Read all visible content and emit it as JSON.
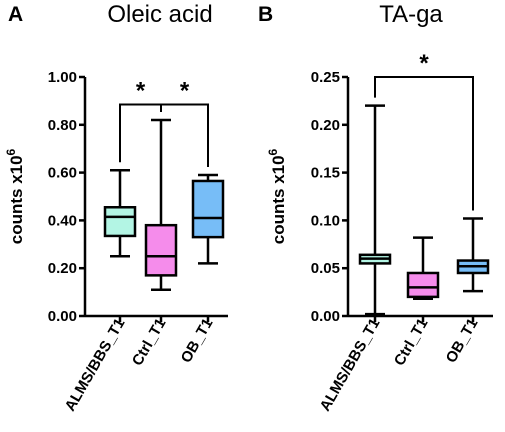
{
  "chart_data": [
    {
      "type": "box",
      "panel": "A",
      "title": "Oleic acid",
      "ylabel": "counts x10",
      "ylabel_sup": "6",
      "ylim": [
        0,
        1.0
      ],
      "yticks": [
        "0.00",
        "0.20",
        "0.40",
        "0.60",
        "0.80",
        "1.00"
      ],
      "categories": [
        "ALMS/BBS_T1",
        "Ctrl_T1",
        "OB_T1"
      ],
      "colors": [
        "#B3F5E4",
        "#F58CEB",
        "#77BDF7"
      ],
      "boxes": [
        {
          "min": 0.25,
          "q1": 0.335,
          "median": 0.415,
          "q3": 0.455,
          "max": 0.61
        },
        {
          "min": 0.11,
          "q1": 0.17,
          "median": 0.25,
          "q3": 0.38,
          "max": 0.82
        },
        {
          "min": 0.22,
          "q1": 0.33,
          "median": 0.41,
          "q3": 0.565,
          "max": 0.59
        }
      ],
      "significance": [
        {
          "from": 0,
          "to": 1,
          "label": "*",
          "y": 0.885
        },
        {
          "from": 1,
          "to": 2,
          "label": "*",
          "y": 0.885
        }
      ]
    },
    {
      "type": "box",
      "panel": "B",
      "title": "TA-ga",
      "ylabel": "counts x10",
      "ylabel_sup": "6",
      "ylim": [
        0,
        0.25
      ],
      "yticks": [
        "0.00",
        "0.05",
        "0.10",
        "0.15",
        "0.20",
        "0.25"
      ],
      "categories": [
        "ALMS/BBS_T1",
        "Ctrl_T1",
        "OB_T1"
      ],
      "colors": [
        "#B3F5E4",
        "#F58CEB",
        "#77BDF7"
      ],
      "boxes": [
        {
          "min": 0.002,
          "q1": 0.055,
          "median": 0.06,
          "q3": 0.064,
          "max": 0.22
        },
        {
          "min": 0.018,
          "q1": 0.02,
          "median": 0.03,
          "q3": 0.045,
          "max": 0.082
        },
        {
          "min": 0.026,
          "q1": 0.045,
          "median": 0.052,
          "q3": 0.058,
          "max": 0.102
        }
      ],
      "significance": [
        {
          "from": 0,
          "to": 2,
          "label": "*",
          "y": 0.25
        }
      ]
    }
  ]
}
